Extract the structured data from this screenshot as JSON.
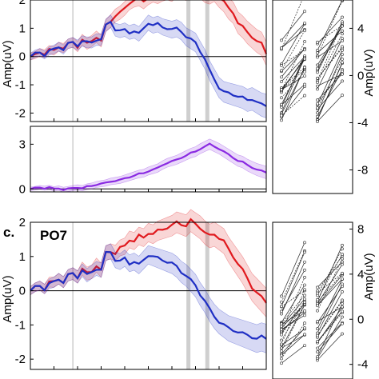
{
  "colors": {
    "cond_a": "#e0191e",
    "cond_b": "#1f2fc4",
    "diff": "#8a2be2"
  },
  "labels": {
    "panel_letter": "c.",
    "ylabel": "Amp(uV)"
  },
  "chart_data": [
    {
      "type": "line",
      "ylabel": "Amp(uV)",
      "ylim": [
        -2.3,
        2.0
      ],
      "yticks": [
        "2",
        "1",
        "0",
        "-1",
        "-2"
      ],
      "yticks_val": [
        2,
        1,
        0,
        -1,
        -2
      ],
      "highlight_x": [
        0.67,
        0.75
      ],
      "series": [
        {
          "color": "#e0191e",
          "values": [
            0,
            0.05,
            0.15,
            0.1,
            0.25,
            0.2,
            0.35,
            0.3,
            0.45,
            0.5,
            0.35,
            0.6,
            0.45,
            0.55,
            0.7,
            0.55,
            1.1,
            1.25,
            1.45,
            1.55,
            1.7,
            1.9,
            2.0,
            2.05,
            1.95,
            2.1,
            2.2,
            2.15,
            2.25,
            2.3,
            2.25,
            2.4,
            2.35,
            2.3,
            2.5,
            2.45,
            2.4,
            2.25,
            2.2,
            2.3,
            2.1,
            1.95,
            1.7,
            1.55,
            1.2,
            1.05,
            0.85,
            0.7,
            0.55,
            0.45,
            0.1
          ]
        },
        {
          "color": "#1f2fc4",
          "values": [
            0,
            0.1,
            0.15,
            0.05,
            0.2,
            0.25,
            0.35,
            0.25,
            0.45,
            0.5,
            0.4,
            0.55,
            0.5,
            0.5,
            0.6,
            0.6,
            1.1,
            1.25,
            0.95,
            0.9,
            0.95,
            0.85,
            0.9,
            0.8,
            1.0,
            1.2,
            1.1,
            1.15,
            1.05,
            1.0,
            0.95,
            1.0,
            0.9,
            0.7,
            0.6,
            0.5,
            0.2,
            -0.1,
            -0.5,
            -0.8,
            -1.1,
            -1.25,
            -1.3,
            -1.35,
            -1.4,
            -1.45,
            -1.55,
            -1.5,
            -1.6,
            -1.7,
            -1.75
          ]
        }
      ]
    },
    {
      "type": "line",
      "ylim": [
        -0.2,
        4.2
      ],
      "yticks": [
        "3",
        "0"
      ],
      "yticks_val": [
        3,
        0
      ],
      "series": [
        {
          "color": "#8a2be2",
          "values": [
            0,
            0.05,
            0.1,
            0.05,
            0.1,
            0,
            0.05,
            -0.05,
            0.0,
            0.05,
            0.1,
            0.05,
            0.15,
            0.2,
            0.3,
            0.35,
            0.4,
            0.5,
            0.55,
            0.6,
            0.7,
            0.8,
            0.9,
            1.0,
            1.05,
            1.2,
            1.3,
            1.4,
            1.6,
            1.75,
            1.85,
            1.95,
            2.1,
            2.25,
            2.4,
            2.5,
            2.7,
            2.85,
            3.0,
            2.85,
            2.7,
            2.5,
            2.3,
            2.1,
            1.9,
            1.8,
            1.6,
            1.45,
            1.3,
            1.2,
            1.1
          ]
        }
      ]
    },
    {
      "type": "line",
      "title": "PO7",
      "ylabel": "Amp(uV)",
      "ylim": [
        -2.3,
        2.0
      ],
      "yticks": [
        "2",
        "1",
        "0",
        "-1",
        "-2"
      ],
      "yticks_val": [
        2,
        1,
        0,
        -1,
        -2
      ],
      "highlight_x": [
        0.67,
        0.75
      ],
      "series": [
        {
          "color": "#e0191e",
          "values": [
            0,
            0.1,
            0.15,
            0.05,
            0.25,
            0.25,
            0.35,
            0.25,
            0.45,
            0.5,
            0.4,
            0.65,
            0.5,
            0.55,
            0.75,
            0.6,
            1.1,
            1.15,
            1.1,
            1.25,
            1.3,
            1.5,
            1.45,
            1.6,
            1.55,
            1.7,
            1.65,
            1.75,
            1.8,
            1.85,
            1.9,
            2.0,
            1.95,
            1.9,
            2.05,
            1.95,
            1.85,
            1.7,
            1.6,
            1.65,
            1.55,
            1.45,
            1.2,
            1.0,
            0.8,
            0.6,
            0.35,
            0.1,
            -0.05,
            -0.2,
            -0.35
          ]
        },
        {
          "color": "#1f2fc4",
          "values": [
            0,
            0.1,
            0.15,
            0.05,
            0.2,
            0.25,
            0.35,
            0.25,
            0.45,
            0.5,
            0.4,
            0.6,
            0.45,
            0.55,
            0.65,
            0.6,
            1.1,
            1.15,
            0.9,
            0.85,
            0.95,
            0.8,
            0.85,
            0.75,
            0.9,
            1.05,
            1.0,
            0.95,
            0.9,
            0.85,
            0.8,
            0.7,
            0.55,
            0.45,
            0.3,
            0.15,
            -0.1,
            -0.3,
            -0.55,
            -0.75,
            -0.9,
            -1.0,
            -1.1,
            -1.15,
            -1.2,
            -1.25,
            -1.3,
            -1.35,
            -1.4,
            -1.35,
            -1.4
          ]
        }
      ]
    },
    {
      "type": "scatter",
      "ylim": [
        -10,
        6.4
      ],
      "yticks": [
        "4",
        "0",
        "-4",
        "-8"
      ],
      "yticks_val": [
        4,
        0,
        -4,
        -8
      ],
      "ylabel": "Amp(uV)"
    },
    {
      "type": "scatter",
      "ylim": [
        -5.3,
        8.6
      ],
      "yticks": [
        "8",
        "4",
        "0",
        "-4"
      ],
      "yticks_val": [
        8,
        4,
        0,
        -4
      ],
      "ylabel": "Amp(uV)"
    }
  ]
}
